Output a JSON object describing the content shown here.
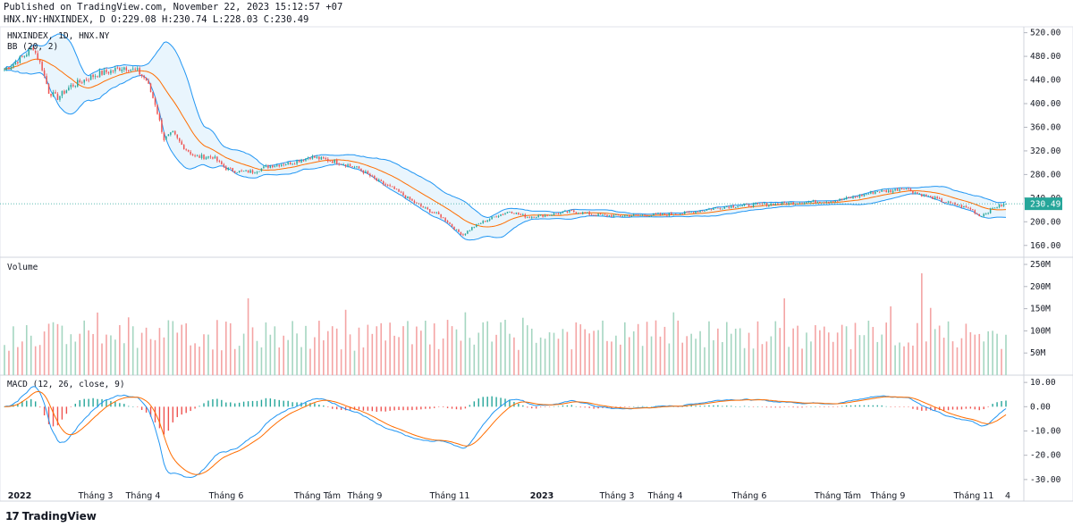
{
  "header": {
    "published": "Published on TradingView.com, November 22, 2023 15:12:57 +07",
    "ohlc": "HNX.NY:HNXINDEX, D O:229.08 H:230.74 L:228.03 C:230.49"
  },
  "brand": {
    "logo": "17",
    "name": "TradingView"
  },
  "colors": {
    "up": "#26a69a",
    "down": "#ef5350",
    "bb_line": "#2196f3",
    "bb_fill": "#e3f2fd",
    "bb_mid": "#ff6d00",
    "vol_up": "#a5d6c1",
    "vol_down": "#f4a4a4",
    "macd": "#2196f3",
    "signal": "#ff6d00",
    "price_tag": "#26a69a"
  },
  "chart_data": [
    {
      "type": "candlestick",
      "title": "HNXINDEX, 1D, HNX.NY",
      "indicator_label": "BB (20, 2)",
      "ylim": [
        140,
        530
      ],
      "y_ticks": [
        "520.00",
        "480.00",
        "440.00",
        "400.00",
        "360.00",
        "320.00",
        "280.00",
        "240.00",
        "200.00",
        "160.00"
      ],
      "last_price": "230.49",
      "x_ticks": [
        "2022",
        "Tháng 3",
        "Tháng 4",
        "Tháng 6",
        "Tháng Tám",
        "Tháng 9",
        "Tháng 11",
        "2023",
        "Tháng 3",
        "Tháng 4",
        "Tháng 6",
        "Tháng Tám",
        "Tháng 9",
        "Tháng 11",
        "4"
      ],
      "close_anchors": [
        [
          0,
          458
        ],
        [
          5,
          470
        ],
        [
          10,
          485
        ],
        [
          13,
          495
        ],
        [
          17,
          460
        ],
        [
          20,
          420
        ],
        [
          24,
          410
        ],
        [
          30,
          430
        ],
        [
          36,
          440
        ],
        [
          42,
          450
        ],
        [
          48,
          455
        ],
        [
          54,
          462
        ],
        [
          60,
          455
        ],
        [
          64,
          440
        ],
        [
          68,
          400
        ],
        [
          72,
          340
        ],
        [
          76,
          350
        ],
        [
          80,
          330
        ],
        [
          86,
          310
        ],
        [
          94,
          310
        ],
        [
          100,
          290
        ],
        [
          106,
          285
        ],
        [
          112,
          285
        ],
        [
          120,
          295
        ],
        [
          130,
          300
        ],
        [
          138,
          310
        ],
        [
          145,
          305
        ],
        [
          152,
          300
        ],
        [
          160,
          290
        ],
        [
          168,
          270
        ],
        [
          176,
          255
        ],
        [
          184,
          235
        ],
        [
          190,
          222
        ],
        [
          196,
          212
        ],
        [
          200,
          200
        ],
        [
          204,
          185
        ],
        [
          207,
          178
        ],
        [
          211,
          190
        ],
        [
          216,
          200
        ],
        [
          222,
          210
        ],
        [
          228,
          218
        ],
        [
          236,
          208
        ],
        [
          246,
          212
        ],
        [
          256,
          218
        ],
        [
          266,
          212
        ],
        [
          276,
          210
        ],
        [
          286,
          211
        ],
        [
          296,
          212
        ],
        [
          306,
          214
        ],
        [
          316,
          220
        ],
        [
          326,
          226
        ],
        [
          336,
          228
        ],
        [
          346,
          230
        ],
        [
          356,
          232
        ],
        [
          366,
          234
        ],
        [
          376,
          236
        ],
        [
          386,
          244
        ],
        [
          394,
          252
        ],
        [
          400,
          252
        ],
        [
          406,
          258
        ],
        [
          412,
          248
        ],
        [
          418,
          242
        ],
        [
          424,
          234
        ],
        [
          430,
          228
        ],
        [
          436,
          222
        ],
        [
          440,
          210
        ],
        [
          443,
          215
        ],
        [
          447,
          225
        ],
        [
          452,
          230
        ]
      ]
    },
    {
      "type": "bar",
      "title": "Volume",
      "ylim": [
        0,
        250
      ],
      "y_ticks": [
        "250M",
        "200M",
        "150M",
        "100M",
        "50M"
      ],
      "unit": "M"
    },
    {
      "type": "line",
      "title": "MACD (12, 26, close, 9)",
      "ylim": [
        -33,
        13
      ],
      "y_ticks": [
        "10.00",
        "0.00",
        "-10.00",
        "-20.00",
        "-30.00"
      ],
      "series": [
        {
          "values_role": "macd"
        },
        {
          "values_role": "signal"
        },
        {
          "values_role": "histogram"
        }
      ]
    }
  ]
}
